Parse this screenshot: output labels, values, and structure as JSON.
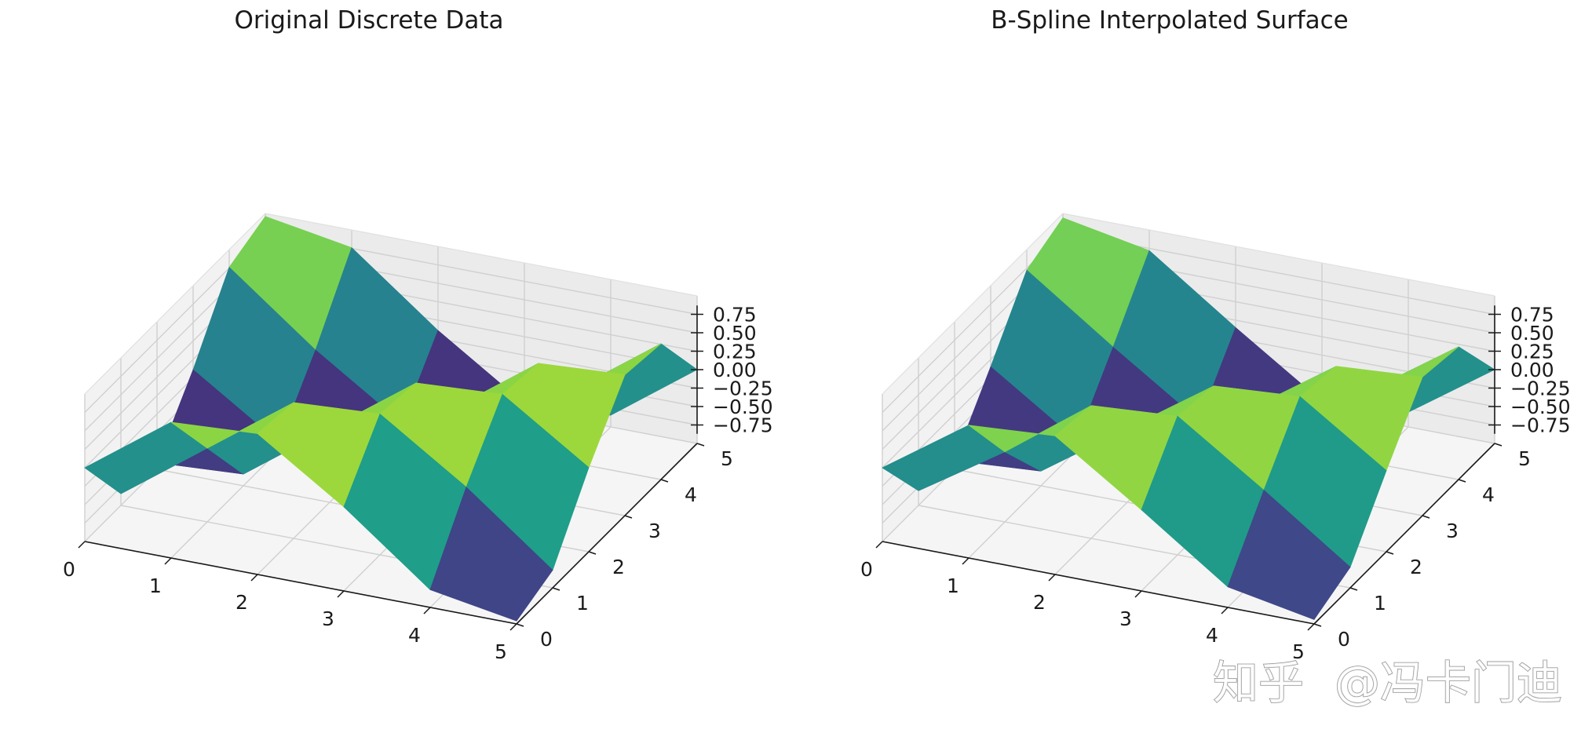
{
  "watermark": {
    "logo_text": "知乎",
    "handle": "@冯卡门迪"
  },
  "colors": {
    "pane_back": "#ebebeb",
    "pane_side": "#f2f2f2",
    "pane_floor": "#f5f5f5",
    "grid": "#d0d0d0",
    "colormap": "viridis"
  },
  "chart_data": [
    {
      "type": "surface",
      "title": "Original Discrete Data",
      "x_ticks": [
        "0",
        "1",
        "2",
        "3",
        "4",
        "5"
      ],
      "y_ticks": [
        "0",
        "1",
        "2",
        "3",
        "4",
        "5"
      ],
      "z_ticks": [
        "−0.75",
        "−0.50",
        "−0.25",
        "0.00",
        "0.25",
        "0.50",
        "0.75"
      ],
      "xlim": [
        0,
        5
      ],
      "ylim": [
        0,
        5
      ],
      "zlim": [
        -1,
        1
      ],
      "x": [
        0,
        1,
        2,
        3,
        4,
        5
      ],
      "y": [
        0,
        1,
        2,
        3,
        4,
        5
      ],
      "z": [
        [
          0.0,
          0.84,
          0.91,
          0.14,
          -0.76,
          -0.96
        ],
        [
          -0.84,
          0.0,
          0.84,
          0.91,
          0.14,
          -0.76
        ],
        [
          -0.91,
          -0.84,
          0.0,
          0.84,
          0.91,
          0.14
        ],
        [
          -0.14,
          -0.91,
          -0.84,
          0.0,
          0.84,
          0.91
        ],
        [
          0.76,
          -0.14,
          -0.91,
          -0.84,
          0.0,
          0.84
        ],
        [
          0.96,
          0.76,
          -0.14,
          -0.91,
          -0.84,
          0.0
        ]
      ],
      "grid": true
    },
    {
      "type": "surface",
      "title": "B-Spline Interpolated Surface",
      "x_ticks": [
        "0",
        "1",
        "2",
        "3",
        "4",
        "5"
      ],
      "y_ticks": [
        "0",
        "1",
        "2",
        "3",
        "4",
        "5"
      ],
      "z_ticks": [
        "−0.75",
        "−0.50",
        "−0.25",
        "0.00",
        "0.25",
        "0.50",
        "0.75"
      ],
      "xlim": [
        0,
        5
      ],
      "ylim": [
        0,
        5
      ],
      "zlim": [
        -1,
        1
      ],
      "x": [
        0,
        1,
        2,
        3,
        4,
        5
      ],
      "y": [
        0,
        1,
        2,
        3,
        4,
        5
      ],
      "z": [
        [
          0.0,
          0.8,
          0.88,
          0.1,
          -0.72,
          -0.94
        ],
        [
          -0.8,
          -0.05,
          0.8,
          0.88,
          0.1,
          -0.72
        ],
        [
          -0.88,
          -0.8,
          0.0,
          0.8,
          0.88,
          0.1
        ],
        [
          -0.1,
          -0.88,
          -0.8,
          0.0,
          0.8,
          0.88
        ],
        [
          0.72,
          -0.1,
          -0.88,
          -0.8,
          0.0,
          0.8
        ],
        [
          0.94,
          0.72,
          -0.1,
          -0.88,
          -0.8,
          0.0
        ]
      ],
      "grid": true
    }
  ]
}
